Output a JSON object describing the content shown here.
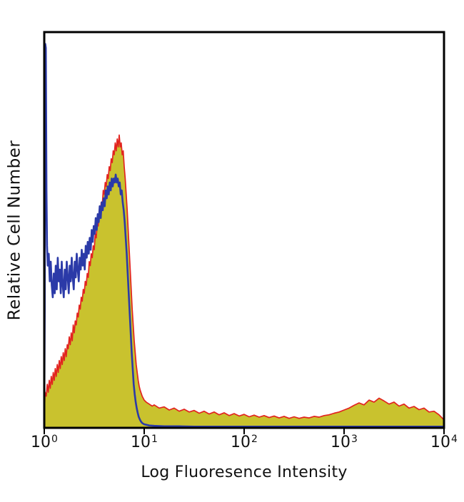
{
  "figure": {
    "background_color": "#ffffff",
    "axis_color": "#000000",
    "text_color": "#111111"
  },
  "chart_data": {
    "type": "area",
    "subtype": "flow-cytometry-histogram-overlay",
    "title": "",
    "xlabel": "Log Fluoresence Intensity",
    "ylabel": "Relative Cell Number",
    "x_scale": "log10",
    "x_range_log10": [
      0,
      4
    ],
    "ylim": [
      0,
      1
    ],
    "grid": false,
    "legend_position": "none",
    "x_ticks": [
      {
        "base": "10",
        "exp": "0"
      },
      {
        "base": "10",
        "exp": "1"
      },
      {
        "base": "10",
        "exp": "2"
      },
      {
        "base": "10",
        "exp": "3"
      },
      {
        "base": "10",
        "exp": "4"
      }
    ],
    "series": [
      {
        "name": "red-filled-histogram",
        "style": "filled-line",
        "stroke_color": "#e2231f",
        "fill_color": "#c9c22e",
        "points": [
          [
            0.0,
            0.02
          ],
          [
            0.008,
            0.09
          ],
          [
            0.02,
            0.08
          ],
          [
            0.03,
            0.11
          ],
          [
            0.04,
            0.09
          ],
          [
            0.05,
            0.12
          ],
          [
            0.06,
            0.1
          ],
          [
            0.07,
            0.13
          ],
          [
            0.08,
            0.11
          ],
          [
            0.09,
            0.14
          ],
          [
            0.1,
            0.12
          ],
          [
            0.11,
            0.15
          ],
          [
            0.12,
            0.13
          ],
          [
            0.13,
            0.16
          ],
          [
            0.14,
            0.14
          ],
          [
            0.15,
            0.17
          ],
          [
            0.16,
            0.15
          ],
          [
            0.17,
            0.18
          ],
          [
            0.18,
            0.16
          ],
          [
            0.19,
            0.19
          ],
          [
            0.2,
            0.17
          ],
          [
            0.21,
            0.2
          ],
          [
            0.22,
            0.18
          ],
          [
            0.23,
            0.21
          ],
          [
            0.24,
            0.2
          ],
          [
            0.25,
            0.23
          ],
          [
            0.26,
            0.21
          ],
          [
            0.27,
            0.24
          ],
          [
            0.28,
            0.22
          ],
          [
            0.29,
            0.26
          ],
          [
            0.3,
            0.24
          ],
          [
            0.31,
            0.27
          ],
          [
            0.32,
            0.26
          ],
          [
            0.33,
            0.29
          ],
          [
            0.34,
            0.28
          ],
          [
            0.35,
            0.31
          ],
          [
            0.36,
            0.3
          ],
          [
            0.37,
            0.33
          ],
          [
            0.38,
            0.32
          ],
          [
            0.39,
            0.35
          ],
          [
            0.4,
            0.34
          ],
          [
            0.41,
            0.37
          ],
          [
            0.42,
            0.36
          ],
          [
            0.43,
            0.39
          ],
          [
            0.44,
            0.38
          ],
          [
            0.45,
            0.42
          ],
          [
            0.46,
            0.41
          ],
          [
            0.47,
            0.44
          ],
          [
            0.48,
            0.43
          ],
          [
            0.49,
            0.46
          ],
          [
            0.5,
            0.45
          ],
          [
            0.51,
            0.49
          ],
          [
            0.52,
            0.48
          ],
          [
            0.53,
            0.52
          ],
          [
            0.54,
            0.51
          ],
          [
            0.55,
            0.55
          ],
          [
            0.56,
            0.54
          ],
          [
            0.57,
            0.57
          ],
          [
            0.58,
            0.56
          ],
          [
            0.59,
            0.6
          ],
          [
            0.6,
            0.59
          ],
          [
            0.61,
            0.62
          ],
          [
            0.62,
            0.61
          ],
          [
            0.63,
            0.64
          ],
          [
            0.64,
            0.63
          ],
          [
            0.65,
            0.66
          ],
          [
            0.66,
            0.65
          ],
          [
            0.67,
            0.68
          ],
          [
            0.68,
            0.67
          ],
          [
            0.69,
            0.7
          ],
          [
            0.7,
            0.69
          ],
          [
            0.71,
            0.72
          ],
          [
            0.72,
            0.7
          ],
          [
            0.73,
            0.73
          ],
          [
            0.74,
            0.71
          ],
          [
            0.75,
            0.74
          ],
          [
            0.76,
            0.71
          ],
          [
            0.77,
            0.72
          ],
          [
            0.78,
            0.69
          ],
          [
            0.79,
            0.7
          ],
          [
            0.8,
            0.66
          ],
          [
            0.81,
            0.63
          ],
          [
            0.82,
            0.59
          ],
          [
            0.83,
            0.55
          ],
          [
            0.84,
            0.5
          ],
          [
            0.85,
            0.45
          ],
          [
            0.86,
            0.4
          ],
          [
            0.87,
            0.35
          ],
          [
            0.88,
            0.3
          ],
          [
            0.89,
            0.26
          ],
          [
            0.9,
            0.22
          ],
          [
            0.91,
            0.19
          ],
          [
            0.92,
            0.16
          ],
          [
            0.93,
            0.14
          ],
          [
            0.94,
            0.12
          ],
          [
            0.95,
            0.105
          ],
          [
            0.96,
            0.095
          ],
          [
            0.98,
            0.08
          ],
          [
            1.0,
            0.07
          ],
          [
            1.02,
            0.065
          ],
          [
            1.05,
            0.06
          ],
          [
            1.08,
            0.055
          ],
          [
            1.1,
            0.058
          ],
          [
            1.15,
            0.05
          ],
          [
            1.2,
            0.053
          ],
          [
            1.25,
            0.045
          ],
          [
            1.3,
            0.05
          ],
          [
            1.35,
            0.042
          ],
          [
            1.4,
            0.047
          ],
          [
            1.45,
            0.04
          ],
          [
            1.5,
            0.044
          ],
          [
            1.55,
            0.037
          ],
          [
            1.6,
            0.042
          ],
          [
            1.65,
            0.035
          ],
          [
            1.7,
            0.04
          ],
          [
            1.75,
            0.033
          ],
          [
            1.8,
            0.038
          ],
          [
            1.85,
            0.031
          ],
          [
            1.9,
            0.036
          ],
          [
            1.95,
            0.03
          ],
          [
            2.0,
            0.034
          ],
          [
            2.05,
            0.028
          ],
          [
            2.1,
            0.032
          ],
          [
            2.15,
            0.027
          ],
          [
            2.2,
            0.031
          ],
          [
            2.25,
            0.026
          ],
          [
            2.3,
            0.03
          ],
          [
            2.35,
            0.025
          ],
          [
            2.4,
            0.029
          ],
          [
            2.45,
            0.024
          ],
          [
            2.5,
            0.028
          ],
          [
            2.55,
            0.024
          ],
          [
            2.6,
            0.027
          ],
          [
            2.65,
            0.025
          ],
          [
            2.7,
            0.029
          ],
          [
            2.75,
            0.027
          ],
          [
            2.8,
            0.031
          ],
          [
            2.85,
            0.033
          ],
          [
            2.9,
            0.037
          ],
          [
            2.95,
            0.04
          ],
          [
            3.0,
            0.045
          ],
          [
            3.05,
            0.05
          ],
          [
            3.1,
            0.057
          ],
          [
            3.15,
            0.063
          ],
          [
            3.2,
            0.058
          ],
          [
            3.25,
            0.07
          ],
          [
            3.3,
            0.065
          ],
          [
            3.35,
            0.075
          ],
          [
            3.4,
            0.068
          ],
          [
            3.45,
            0.06
          ],
          [
            3.5,
            0.065
          ],
          [
            3.55,
            0.055
          ],
          [
            3.6,
            0.06
          ],
          [
            3.65,
            0.05
          ],
          [
            3.7,
            0.054
          ],
          [
            3.75,
            0.046
          ],
          [
            3.8,
            0.05
          ],
          [
            3.85,
            0.04
          ],
          [
            3.9,
            0.042
          ],
          [
            3.95,
            0.033
          ],
          [
            4.0,
            0.02
          ]
        ]
      },
      {
        "name": "blue-open-histogram",
        "style": "line",
        "stroke_color": "#2b3aa8",
        "points": [
          [
            0.0,
            0.03
          ],
          [
            0.005,
            0.3
          ],
          [
            0.01,
            0.97
          ],
          [
            0.016,
            0.96
          ],
          [
            0.022,
            0.6
          ],
          [
            0.028,
            0.46
          ],
          [
            0.035,
            0.41
          ],
          [
            0.045,
            0.44
          ],
          [
            0.055,
            0.37
          ],
          [
            0.065,
            0.42
          ],
          [
            0.075,
            0.36
          ],
          [
            0.085,
            0.33
          ],
          [
            0.095,
            0.39
          ],
          [
            0.105,
            0.34
          ],
          [
            0.115,
            0.41
          ],
          [
            0.125,
            0.35
          ],
          [
            0.135,
            0.43
          ],
          [
            0.145,
            0.37
          ],
          [
            0.155,
            0.4
          ],
          [
            0.165,
            0.34
          ],
          [
            0.175,
            0.42
          ],
          [
            0.185,
            0.36
          ],
          [
            0.195,
            0.33
          ],
          [
            0.205,
            0.4
          ],
          [
            0.215,
            0.35
          ],
          [
            0.225,
            0.42
          ],
          [
            0.235,
            0.38
          ],
          [
            0.245,
            0.34
          ],
          [
            0.255,
            0.41
          ],
          [
            0.265,
            0.37
          ],
          [
            0.275,
            0.43
          ],
          [
            0.285,
            0.38
          ],
          [
            0.295,
            0.35
          ],
          [
            0.305,
            0.42
          ],
          [
            0.315,
            0.38
          ],
          [
            0.325,
            0.44
          ],
          [
            0.335,
            0.4
          ],
          [
            0.345,
            0.37
          ],
          [
            0.355,
            0.43
          ],
          [
            0.365,
            0.4
          ],
          [
            0.375,
            0.45
          ],
          [
            0.385,
            0.41
          ],
          [
            0.395,
            0.44
          ],
          [
            0.405,
            0.4
          ],
          [
            0.415,
            0.46
          ],
          [
            0.425,
            0.43
          ],
          [
            0.435,
            0.47
          ],
          [
            0.445,
            0.44
          ],
          [
            0.455,
            0.48
          ],
          [
            0.465,
            0.45
          ],
          [
            0.475,
            0.5
          ],
          [
            0.485,
            0.47
          ],
          [
            0.495,
            0.51
          ],
          [
            0.505,
            0.49
          ],
          [
            0.515,
            0.53
          ],
          [
            0.525,
            0.5
          ],
          [
            0.535,
            0.54
          ],
          [
            0.545,
            0.52
          ],
          [
            0.555,
            0.56
          ],
          [
            0.565,
            0.53
          ],
          [
            0.575,
            0.57
          ],
          [
            0.585,
            0.55
          ],
          [
            0.595,
            0.58
          ],
          [
            0.605,
            0.56
          ],
          [
            0.615,
            0.6
          ],
          [
            0.625,
            0.58
          ],
          [
            0.635,
            0.61
          ],
          [
            0.645,
            0.59
          ],
          [
            0.655,
            0.62
          ],
          [
            0.665,
            0.6
          ],
          [
            0.675,
            0.63
          ],
          [
            0.685,
            0.61
          ],
          [
            0.695,
            0.63
          ],
          [
            0.705,
            0.62
          ],
          [
            0.715,
            0.64
          ],
          [
            0.725,
            0.62
          ],
          [
            0.735,
            0.63
          ],
          [
            0.745,
            0.61
          ],
          [
            0.755,
            0.62
          ],
          [
            0.765,
            0.59
          ],
          [
            0.775,
            0.6
          ],
          [
            0.785,
            0.57
          ],
          [
            0.795,
            0.55
          ],
          [
            0.805,
            0.52
          ],
          [
            0.815,
            0.48
          ],
          [
            0.825,
            0.44
          ],
          [
            0.835,
            0.39
          ],
          [
            0.845,
            0.34
          ],
          [
            0.855,
            0.29
          ],
          [
            0.865,
            0.24
          ],
          [
            0.875,
            0.19
          ],
          [
            0.885,
            0.15
          ],
          [
            0.895,
            0.11
          ],
          [
            0.905,
            0.085
          ],
          [
            0.915,
            0.065
          ],
          [
            0.925,
            0.05
          ],
          [
            0.935,
            0.038
          ],
          [
            0.945,
            0.028
          ],
          [
            0.955,
            0.022
          ],
          [
            0.965,
            0.017
          ],
          [
            0.98,
            0.012
          ],
          [
            1.0,
            0.009
          ],
          [
            1.05,
            0.006
          ],
          [
            1.1,
            0.005
          ],
          [
            1.2,
            0.004
          ],
          [
            1.35,
            0.004
          ],
          [
            1.5,
            0.003
          ],
          [
            1.7,
            0.003
          ],
          [
            2.0,
            0.003
          ],
          [
            2.5,
            0.003
          ],
          [
            3.0,
            0.003
          ],
          [
            3.5,
            0.003
          ],
          [
            4.0,
            0.003
          ]
        ]
      }
    ]
  }
}
